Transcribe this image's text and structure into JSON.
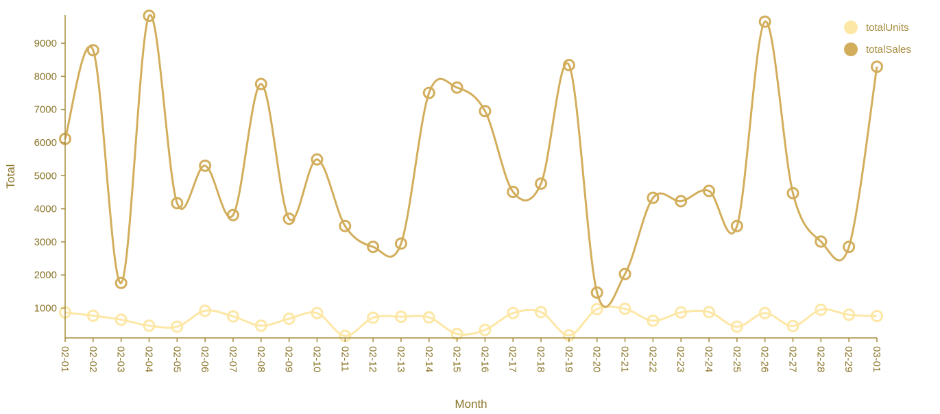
{
  "chart_data": {
    "type": "line",
    "title": "",
    "xlabel": "Month",
    "ylabel": "Total",
    "ylim": [
      100,
      9850
    ],
    "yticks": [
      1000,
      2000,
      3000,
      4000,
      5000,
      6000,
      7000,
      8000,
      9000
    ],
    "categories": [
      "02-01",
      "02-02",
      "02-03",
      "02-04",
      "02-05",
      "02-06",
      "02-07",
      "02-08",
      "02-09",
      "02-10",
      "02-11",
      "02-12",
      "02-13",
      "02-14",
      "02-15",
      "02-16",
      "02-17",
      "02-18",
      "02-19",
      "02-20",
      "02-21",
      "02-22",
      "02-23",
      "02-24",
      "02-25",
      "02-26",
      "02-27",
      "02-28",
      "02-29",
      "03-01"
    ],
    "series": [
      {
        "name": "totalUnits",
        "color": "#fde7a6",
        "values": [
          870,
          770,
          650,
          470,
          440,
          920,
          750,
          470,
          680,
          850,
          160,
          710,
          740,
          720,
          220,
          340,
          850,
          880,
          180,
          970,
          980,
          620,
          870,
          880,
          440,
          850,
          460,
          950,
          800,
          760
        ]
      },
      {
        "name": "totalSales",
        "color": "#d2ae5c",
        "values": [
          6110,
          8790,
          1760,
          9830,
          4170,
          5300,
          3810,
          7770,
          3700,
          5490,
          3480,
          2850,
          2950,
          7500,
          7660,
          6950,
          4510,
          4760,
          8340,
          1470,
          2030,
          4330,
          4230,
          4540,
          3480,
          9650,
          4470,
          3010,
          2850,
          8290
        ]
      }
    ],
    "legend_position": "top-right"
  }
}
